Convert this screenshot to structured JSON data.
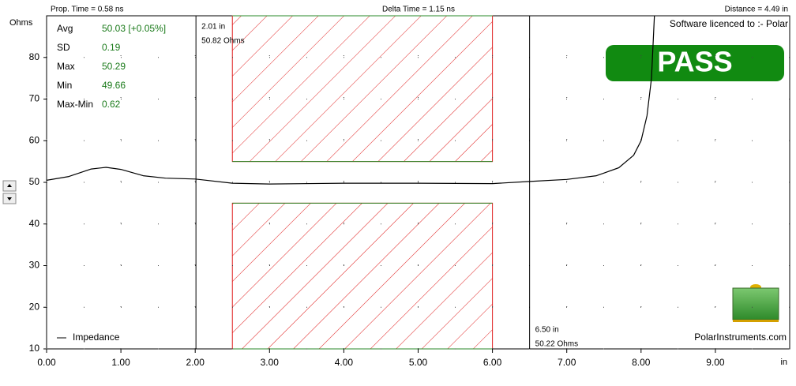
{
  "chart_data": {
    "type": "line",
    "header": {
      "left": "Prop. Time = 0.58 ns",
      "center": "Delta Time = 1.15 ns",
      "right": "Distance = 4.49 in"
    },
    "y_label": "Ohms",
    "x_label": "in",
    "x": [
      0,
      0.3,
      0.6,
      0.8,
      1.0,
      1.3,
      1.6,
      2.0,
      2.5,
      3.0,
      4.0,
      5.0,
      6.0,
      6.5,
      7.0,
      7.4,
      7.7,
      7.9,
      8.0,
      8.08,
      8.14,
      8.18
    ],
    "series": [
      {
        "name": "Impedance",
        "color": "#000000",
        "values": [
          50.5,
          51.4,
          53.2,
          53.6,
          53.1,
          51.6,
          51.0,
          50.8,
          49.8,
          49.6,
          49.8,
          49.8,
          49.7,
          50.2,
          50.7,
          51.6,
          53.5,
          56.5,
          60,
          66,
          75,
          90
        ]
      }
    ],
    "xlim": [
      0,
      10
    ],
    "ylim": [
      10,
      90
    ],
    "xticks": [
      {
        "value": 0,
        "label": "0.00"
      },
      {
        "value": 1,
        "label": "1.00"
      },
      {
        "value": 2,
        "label": "2.00"
      },
      {
        "value": 3,
        "label": "3.00"
      },
      {
        "value": 4,
        "label": "4.00"
      },
      {
        "value": 5,
        "label": "5.00"
      },
      {
        "value": 6,
        "label": "6.00"
      },
      {
        "value": 7,
        "label": "7.00"
      },
      {
        "value": 8,
        "label": "8.00"
      },
      {
        "value": 9,
        "label": "9.00"
      }
    ],
    "yticks": [
      10,
      20,
      30,
      40,
      50,
      60,
      70,
      80
    ],
    "grid": true,
    "stats": [
      {
        "label": "Avg",
        "value": "50.03 [+0.05%]"
      },
      {
        "label": "SD",
        "value": "0.19"
      },
      {
        "label": "Max",
        "value": "50.29"
      },
      {
        "label": "Min",
        "value": "49.66"
      },
      {
        "label": "Max-Min",
        "value": "0.62"
      }
    ],
    "cursors": [
      {
        "x": 2.01,
        "label": "2.01 in",
        "reading": "50.82 Ohms"
      },
      {
        "x": 6.5,
        "label": "6.50 in",
        "reading": "50.22 Ohms"
      }
    ],
    "limits": [
      {
        "x": [
          2.5,
          6.0
        ],
        "y": [
          55,
          90
        ]
      },
      {
        "x": [
          2.5,
          6.0
        ],
        "y": [
          10,
          45
        ]
      }
    ],
    "result": "PASS",
    "licence": "Software licenced to :- Polar",
    "website": "PolarInstruments.com"
  }
}
